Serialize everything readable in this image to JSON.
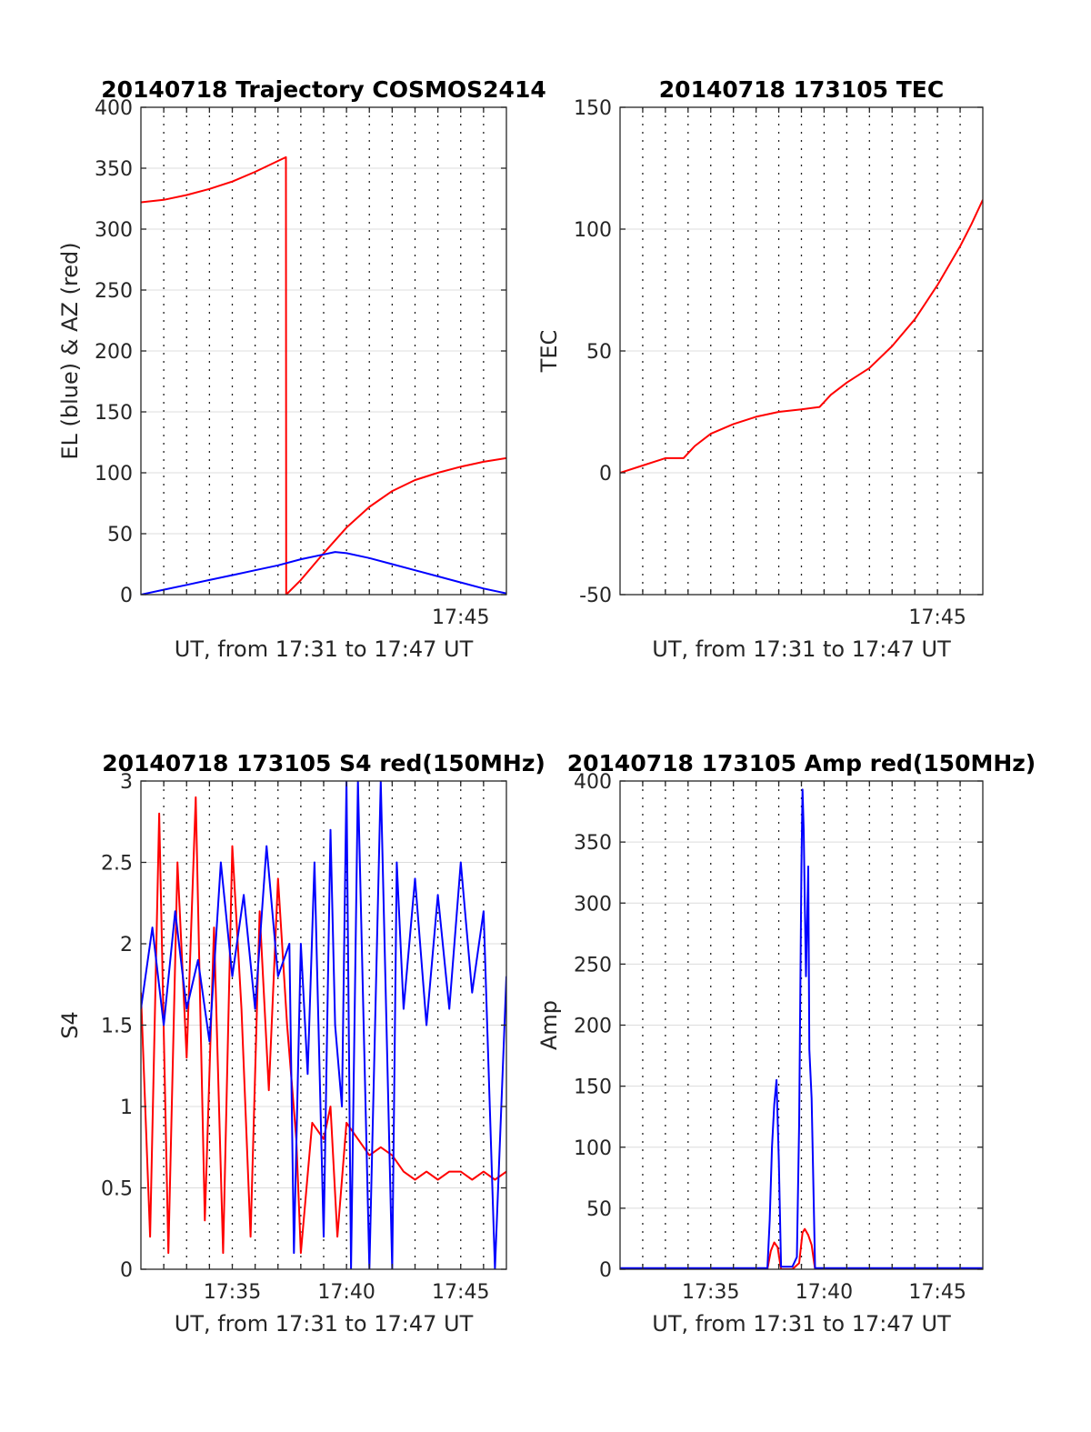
{
  "chart_data": [
    {
      "type": "line",
      "title": "20140718 Trajectory COSMOS2414",
      "xlabel": "UT, from 17:31 to 17:47 UT",
      "ylabel": "EL (blue) & AZ (red)",
      "xlim_minutes": [
        0,
        16
      ],
      "ylim": [
        0,
        400
      ],
      "yticks": [
        0,
        50,
        100,
        150,
        200,
        250,
        300,
        350,
        400
      ],
      "xticks": [
        {
          "minute": 14,
          "label": "17:45"
        }
      ],
      "grid": true,
      "series": [
        {
          "color": "#ff0000",
          "x": [
            0,
            1,
            2,
            3,
            4,
            5,
            6,
            6.35,
            6.36,
            7,
            8,
            9,
            10,
            11,
            12,
            13,
            14,
            15,
            16
          ],
          "y": [
            322,
            324,
            328,
            333,
            339,
            347,
            356,
            359,
            0,
            12,
            34,
            55,
            72,
            85,
            94,
            100,
            105,
            109,
            112
          ]
        },
        {
          "color": "#0000ff",
          "x": [
            0,
            1,
            2,
            3,
            4,
            5,
            6,
            7,
            8,
            8.5,
            9,
            10,
            11,
            12,
            13,
            14,
            15,
            16
          ],
          "y": [
            0,
            4,
            8,
            12,
            16,
            20,
            24,
            29,
            33,
            35,
            34,
            30,
            25,
            20,
            15,
            10,
            5,
            1
          ]
        }
      ]
    },
    {
      "type": "line",
      "title": "20140718 173105 TEC",
      "xlabel": "UT, from 17:31 to 17:47 UT",
      "ylabel": "TEC",
      "xlim_minutes": [
        0,
        16
      ],
      "ylim": [
        -50,
        150
      ],
      "yticks": [
        -50,
        0,
        50,
        100,
        150
      ],
      "xticks": [
        {
          "minute": 14,
          "label": "17:45"
        }
      ],
      "grid": true,
      "series": [
        {
          "color": "#ff0000",
          "x": [
            0,
            1,
            2,
            2.8,
            3.3,
            4,
            5,
            6,
            7,
            8,
            8.8,
            9.3,
            10,
            11,
            12,
            13,
            14,
            15,
            15.5,
            16
          ],
          "y": [
            0,
            3,
            6,
            6,
            11,
            16,
            20,
            23,
            25,
            26,
            27,
            32,
            37,
            43,
            52,
            63,
            77,
            93,
            102,
            112
          ]
        }
      ]
    },
    {
      "type": "line",
      "title": "20140718 173105 S4 red(150MHz)",
      "xlabel": "UT, from 17:31 to 17:47 UT",
      "ylabel": "S4",
      "xlim_minutes": [
        0,
        16
      ],
      "ylim": [
        0,
        3
      ],
      "yticks": [
        0,
        0.5,
        1,
        1.5,
        2,
        2.5,
        3
      ],
      "xticks": [
        {
          "minute": 4,
          "label": "17:35"
        },
        {
          "minute": 9,
          "label": "17:40"
        },
        {
          "minute": 14,
          "label": "17:45"
        }
      ],
      "grid": true,
      "series": [
        {
          "color": "#ff0000",
          "x": [
            0,
            0.4,
            0.8,
            1.2,
            1.6,
            2,
            2.4,
            2.8,
            3.2,
            3.6,
            4,
            4.4,
            4.8,
            5.2,
            5.6,
            6,
            6.4,
            6.8,
            7,
            7.5,
            8,
            8.3,
            8.6,
            9,
            9.5,
            10,
            10.5,
            11,
            11.5,
            12,
            12.5,
            13,
            13.5,
            14,
            14.5,
            15,
            15.5,
            16
          ],
          "y": [
            1.7,
            0.2,
            2.8,
            0.1,
            2.5,
            1.3,
            2.9,
            0.3,
            2.1,
            0.1,
            2.6,
            1.6,
            0.2,
            2.2,
            1.1,
            2.4,
            1.5,
            0.8,
            0.1,
            0.9,
            0.8,
            1.0,
            0.2,
            0.9,
            0.8,
            0.7,
            0.75,
            0.7,
            0.6,
            0.55,
            0.6,
            0.55,
            0.6,
            0.6,
            0.55,
            0.6,
            0.55,
            0.6
          ]
        },
        {
          "color": "#0000ff",
          "x": [
            0,
            0.5,
            1,
            1.5,
            2,
            2.5,
            3,
            3.5,
            4,
            4.5,
            5,
            5.5,
            6,
            6.5,
            6.7,
            7,
            7.3,
            7.6,
            8,
            8.3,
            8.5,
            8.8,
            9,
            9.2,
            9.5,
            10,
            10.5,
            11,
            11.2,
            11.5,
            12,
            12.5,
            13,
            13.5,
            14,
            14.5,
            15,
            15.5,
            16
          ],
          "y": [
            1.6,
            2.1,
            1.5,
            2.2,
            1.6,
            1.9,
            1.4,
            2.5,
            1.8,
            2.3,
            1.6,
            2.6,
            1.8,
            2.0,
            0.1,
            2.0,
            1.2,
            2.5,
            0.2,
            2.7,
            1.5,
            1.0,
            3.0,
            0.0,
            3.0,
            0.0,
            3.0,
            0.0,
            2.5,
            1.6,
            2.4,
            1.5,
            2.3,
            1.6,
            2.5,
            1.7,
            2.2,
            0.0,
            1.8
          ]
        }
      ]
    },
    {
      "type": "line",
      "title": "20140718 173105 Amp red(150MHz)",
      "xlabel": "UT, from 17:31 to 17:47 UT",
      "ylabel": "Amp",
      "xlim_minutes": [
        0,
        16
      ],
      "ylim": [
        0,
        400
      ],
      "yticks": [
        0,
        50,
        100,
        150,
        200,
        250,
        300,
        350,
        400
      ],
      "xticks": [
        {
          "minute": 4,
          "label": "17:35"
        },
        {
          "minute": 9,
          "label": "17:40"
        },
        {
          "minute": 14,
          "label": "17:45"
        }
      ],
      "grid": true,
      "series": [
        {
          "color": "#ff0000",
          "x": [
            0,
            6.5,
            6.65,
            6.8,
            6.95,
            7.1,
            7.6,
            7.9,
            8.05,
            8.15,
            8.3,
            8.45,
            8.6,
            16
          ],
          "y": [
            0,
            0,
            15,
            22,
            18,
            0,
            0,
            5,
            30,
            33,
            28,
            20,
            0,
            0
          ]
        },
        {
          "color": "#0000ff",
          "x": [
            0,
            6.5,
            6.6,
            6.7,
            6.8,
            6.9,
            7.0,
            7.1,
            7.6,
            7.8,
            7.9,
            8.0,
            8.05,
            8.1,
            8.15,
            8.2,
            8.3,
            8.35,
            8.45,
            8.6,
            16
          ],
          "y": [
            1,
            1,
            40,
            100,
            135,
            155,
            90,
            2,
            2,
            10,
            120,
            330,
            393,
            360,
            300,
            240,
            330,
            180,
            140,
            1,
            1
          ]
        }
      ]
    }
  ]
}
